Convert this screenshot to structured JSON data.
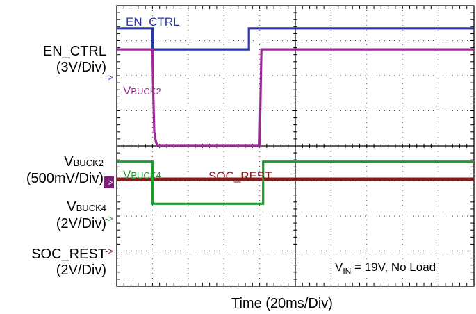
{
  "chart_data": {
    "type": "line",
    "title": "",
    "xlabel": "Time (20ms/Div)",
    "annotation": {
      "prefix": "V",
      "sub": "IN",
      "suffix": " = 19V, No Load"
    },
    "grid": true,
    "x_unit": "ms",
    "xlim": [
      0,
      200
    ],
    "divisions": {
      "x": 10,
      "y": 8,
      "x_per_div": 20
    },
    "series": [
      {
        "name": "EN_CTRL",
        "axis_label": "EN_CTRL",
        "scale": "(3V/Div)",
        "color": "#2a36a8",
        "ref_level_div": 6.75,
        "points": [
          [
            0,
            7.35
          ],
          [
            20,
            7.35
          ],
          [
            20,
            6.75
          ],
          [
            74,
            6.75
          ],
          [
            74,
            7.35
          ],
          [
            200,
            7.35
          ]
        ]
      },
      {
        "name": "VBUCK2",
        "label": {
          "prefix": "V",
          "sub": "BUCK2"
        },
        "axis_label": {
          "prefix": "V",
          "sub": "BUCK2"
        },
        "scale": "(500mV/Div)",
        "color": "#9c2a96",
        "ref_level_div": 6.75,
        "points": [
          [
            0,
            6.75
          ],
          [
            20,
            6.75
          ],
          [
            20.3,
            5.8
          ],
          [
            21,
            4.4
          ],
          [
            22,
            4.1
          ],
          [
            23,
            4.0
          ],
          [
            80,
            4.0
          ],
          [
            80.4,
            5.0
          ],
          [
            81,
            6.75
          ],
          [
            200,
            6.75
          ]
        ]
      },
      {
        "name": "VBUCK4",
        "label": {
          "prefix": "V",
          "sub": "BUCK4"
        },
        "axis_label": {
          "prefix": "V",
          "sub": "BUCK4"
        },
        "scale": "(2V/Div)",
        "color": "#1f9a2e",
        "ref_level_div": 2.35,
        "points": [
          [
            0,
            3.55
          ],
          [
            20,
            3.55
          ],
          [
            20,
            2.35
          ],
          [
            82,
            2.35
          ],
          [
            82,
            3.55
          ],
          [
            200,
            3.55
          ]
        ]
      },
      {
        "name": "SOC_REST",
        "label": "SOC_REST",
        "axis_label": "SOC_REST",
        "scale": "(2V/Div)",
        "color": "#8a1a1a",
        "ref_level_div": 1.35,
        "points": [
          [
            0,
            3.05
          ],
          [
            200,
            3.05
          ]
        ]
      }
    ]
  }
}
